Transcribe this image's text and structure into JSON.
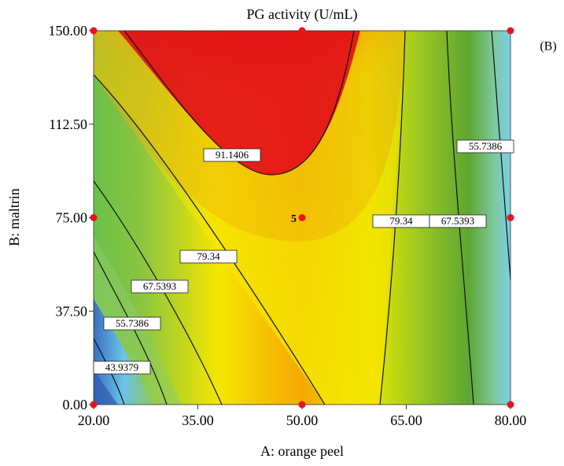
{
  "chart_data": {
    "type": "contour",
    "title": "PG activity (U/mL)",
    "annotation": "(B)",
    "x_label": "A: orange peel",
    "y_label": "B: maltrin",
    "xlim": [
      20,
      80
    ],
    "ylim": [
      0,
      150
    ],
    "xticks": [
      {
        "value": 20,
        "label": "20.00"
      },
      {
        "value": 35,
        "label": "35.00"
      },
      {
        "value": 50,
        "label": "50.00"
      },
      {
        "value": 65,
        "label": "65.00"
      },
      {
        "value": 80,
        "label": "80.00"
      }
    ],
    "yticks": [
      {
        "value": 0,
        "label": "0.00"
      },
      {
        "value": 37.5,
        "label": "37.50"
      },
      {
        "value": 75,
        "label": "75.00"
      },
      {
        "value": 112.5,
        "label": "112.50"
      },
      {
        "value": 150,
        "label": "150.00"
      }
    ],
    "contour_levels": [
      43.9379,
      55.7386,
      67.5393,
      79.34,
      91.1406
    ],
    "design_points": {
      "x": [
        20,
        20,
        20,
        50,
        50,
        50,
        80,
        80,
        80
      ],
      "y": [
        0,
        75,
        150,
        0,
        75,
        150,
        0,
        75,
        150
      ],
      "color": "#e8141c"
    },
    "center_replicates": 5,
    "grid": false
  }
}
